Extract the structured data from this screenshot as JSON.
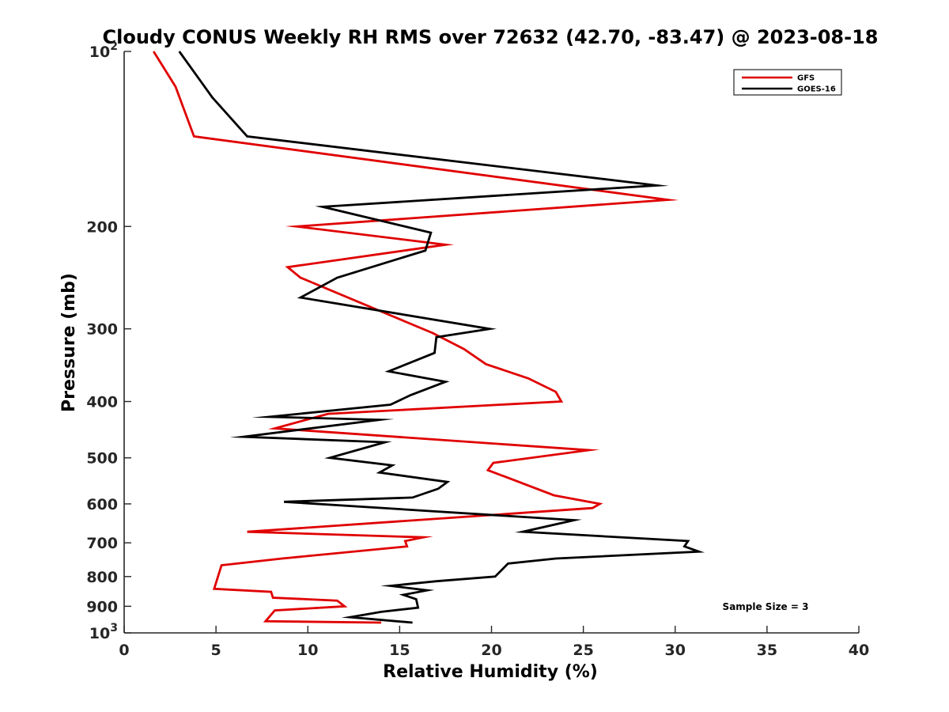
{
  "chart_data": {
    "type": "line",
    "title": "Cloudy CONUS Weekly RH RMS over 72632 (42.70, -83.47) @ 2023-08-18",
    "xlabel": "Relative Humidity (%)",
    "ylabel": "Pressure (mb)",
    "xlim": [
      0,
      40
    ],
    "ylim": [
      100,
      1000
    ],
    "y_scale": "log",
    "y_reversed": true,
    "grid": false,
    "legend_position": "top-right",
    "x_ticks": [
      0,
      5,
      10,
      15,
      20,
      25,
      30,
      35,
      40
    ],
    "x_tick_labels": [
      "0",
      "5",
      "10",
      "15",
      "20",
      "25",
      "30",
      "35",
      "40"
    ],
    "y_ticks": [
      100,
      200,
      300,
      400,
      500,
      600,
      700,
      800,
      900,
      1000
    ],
    "y_tick_labels": [
      {
        "base": "10",
        "sup": "2"
      },
      {
        "base": "200",
        "sup": ""
      },
      {
        "base": "300",
        "sup": ""
      },
      {
        "base": "400",
        "sup": ""
      },
      {
        "base": "500",
        "sup": ""
      },
      {
        "base": "600",
        "sup": ""
      },
      {
        "base": "700",
        "sup": ""
      },
      {
        "base": "800",
        "sup": ""
      },
      {
        "base": "900",
        "sup": ""
      },
      {
        "base": "10",
        "sup": "3"
      }
    ],
    "annotation": "Sample Size = 3",
    "series": [
      {
        "name": "GFS",
        "color": "#e00000",
        "points": [
          [
            1.6,
            100
          ],
          [
            2.8,
            115
          ],
          [
            3.8,
            140
          ],
          [
            29.6,
            180
          ],
          [
            9.4,
            200
          ],
          [
            17.5,
            215
          ],
          [
            8.9,
            235
          ],
          [
            9.6,
            245
          ],
          [
            16.8,
            305
          ],
          [
            18.5,
            325
          ],
          [
            19.7,
            345
          ],
          [
            22.0,
            365
          ],
          [
            23.5,
            385
          ],
          [
            23.8,
            400
          ],
          [
            11.1,
            420
          ],
          [
            8.2,
            445
          ],
          [
            25.3,
            485
          ],
          [
            20.1,
            510
          ],
          [
            19.8,
            525
          ],
          [
            23.4,
            580
          ],
          [
            25.9,
            600
          ],
          [
            25.5,
            610
          ],
          [
            6.7,
            670
          ],
          [
            16.3,
            685
          ],
          [
            15.3,
            695
          ],
          [
            15.4,
            710
          ],
          [
            8.6,
            745
          ],
          [
            5.3,
            765
          ],
          [
            4.9,
            840
          ],
          [
            8.0,
            850
          ],
          [
            8.1,
            870
          ],
          [
            11.6,
            880
          ],
          [
            12.0,
            900
          ],
          [
            8.2,
            915
          ],
          [
            7.7,
            955
          ],
          [
            14.0,
            960
          ]
        ]
      },
      {
        "name": "GOES-16",
        "color": "#000000",
        "points": [
          [
            3.0,
            100
          ],
          [
            4.8,
            120
          ],
          [
            6.7,
            140
          ],
          [
            29.0,
            170
          ],
          [
            10.8,
            185
          ],
          [
            16.7,
            205
          ],
          [
            16.4,
            220
          ],
          [
            11.6,
            245
          ],
          [
            9.6,
            265
          ],
          [
            19.9,
            300
          ],
          [
            17.0,
            310
          ],
          [
            16.9,
            330
          ],
          [
            14.4,
            355
          ],
          [
            17.5,
            370
          ],
          [
            15.6,
            390
          ],
          [
            14.5,
            405
          ],
          [
            7.9,
            425
          ],
          [
            13.9,
            430
          ],
          [
            6.5,
            460
          ],
          [
            14.2,
            470
          ],
          [
            11.2,
            500
          ],
          [
            14.6,
            515
          ],
          [
            13.9,
            530
          ],
          [
            17.6,
            550
          ],
          [
            17.1,
            565
          ],
          [
            15.7,
            585
          ],
          [
            8.7,
            595
          ],
          [
            24.5,
            640
          ],
          [
            21.7,
            670
          ],
          [
            30.7,
            695
          ],
          [
            30.5,
            710
          ],
          [
            31.3,
            725
          ],
          [
            23.5,
            745
          ],
          [
            20.9,
            760
          ],
          [
            20.2,
            800
          ],
          [
            17.0,
            815
          ],
          [
            14.5,
            830
          ],
          [
            16.5,
            845
          ],
          [
            15.2,
            860
          ],
          [
            15.9,
            875
          ],
          [
            16.0,
            905
          ],
          [
            14.0,
            920
          ],
          [
            12.3,
            940
          ],
          [
            15.7,
            960
          ]
        ]
      }
    ]
  }
}
